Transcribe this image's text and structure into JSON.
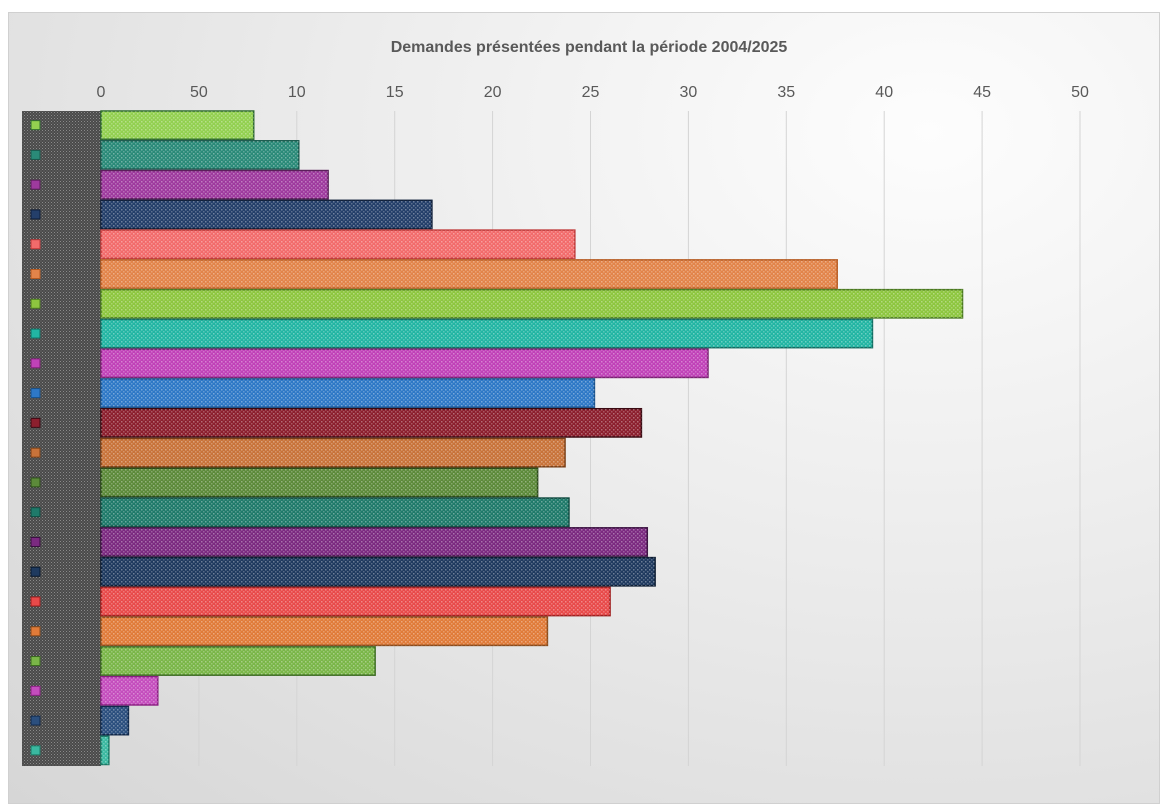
{
  "chart_data": {
    "type": "bar",
    "orientation": "horizontal",
    "title": "Demandes présentées pendant la période 2004/2025",
    "xlabel": "",
    "ylabel": "",
    "x_ticks": [
      "0",
      "50",
      "10",
      "15",
      "20",
      "25",
      "30",
      "35",
      "40",
      "45",
      "50"
    ],
    "xlim": [
      0,
      50
    ],
    "grid": true,
    "categories": [
      "",
      "",
      "",
      "",
      "",
      "",
      "",
      "",
      "",
      "",
      "",
      "",
      "",
      "",
      "",
      "",
      "",
      "",
      "",
      "",
      "",
      ""
    ],
    "values": [
      7.8,
      10.1,
      11.6,
      16.9,
      24.2,
      37.6,
      44,
      39.4,
      31,
      25.2,
      27.6,
      23.7,
      22.3,
      23.9,
      27.9,
      28.3,
      26,
      22.8,
      14,
      2.9,
      1.4,
      0.4
    ],
    "colors": [
      "#92d050",
      "#2a8a78",
      "#9e3a9e",
      "#243f6a",
      "#f26b6b",
      "#e2844a",
      "#8dc63f",
      "#22b5a3",
      "#c042b8",
      "#2e78c6",
      "#8c1f2e",
      "#c8733a",
      "#5c8a3a",
      "#1f7a6a",
      "#7b2a80",
      "#1f3a5f",
      "#e84a4a",
      "#e07b39",
      "#7ab648",
      "#c44dbd",
      "#2b4f7e",
      "#3ab8a0"
    ],
    "borders": [
      "#2f6b2f",
      "#1a5a4e",
      "#5a1f5a",
      "#0f1f3a",
      "#c03a3a",
      "#b55a20",
      "#4a7a1f",
      "#0f6e62",
      "#7a1f72",
      "#17508a",
      "#3a0a12",
      "#7a3f16",
      "#2a4a18",
      "#0f4a40",
      "#3a0f40",
      "#0a1a30",
      "#a01e1e",
      "#8a4a1a",
      "#3a6a1f",
      "#8a1f82",
      "#10284a",
      "#1a7a66"
    ]
  }
}
